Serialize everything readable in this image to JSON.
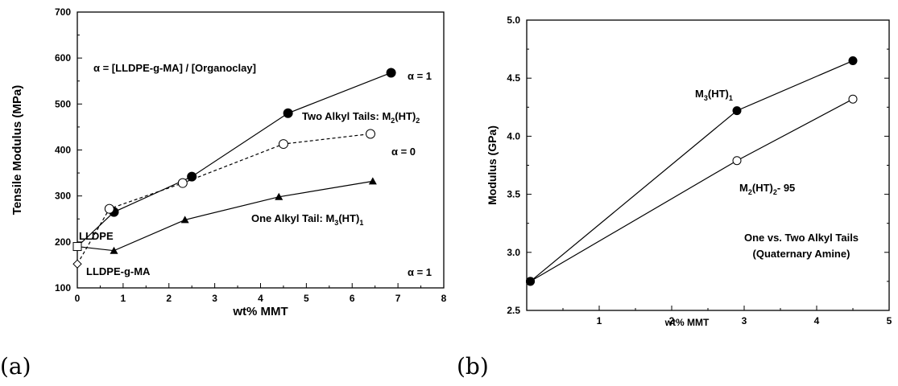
{
  "chart_data": [
    {
      "type": "line",
      "panel_label": "(a)",
      "xlabel": "wt% MMT",
      "ylabel": "Tensile Modulus (MPa)",
      "xlim": [
        0,
        8
      ],
      "ylim": [
        100,
        700
      ],
      "xticks": [
        0,
        1,
        2,
        3,
        4,
        5,
        6,
        7,
        8
      ],
      "yticks": [
        100,
        200,
        300,
        400,
        500,
        600,
        700
      ],
      "series": [
        {
          "name": "Two Alkyl Tails: M2(HT)2, α = 1",
          "marker": "filled-circle",
          "line": "solid",
          "x": [
            0,
            0.8,
            2.5,
            4.6,
            6.85
          ],
          "y": [
            190,
            265,
            342,
            480,
            568
          ]
        },
        {
          "name": "Two Alkyl Tails: M2(HT)2, α = 0",
          "marker": "open-circle",
          "line": "dashed",
          "x": [
            0,
            0.7,
            2.3,
            4.5,
            6.4
          ],
          "y": [
            152,
            272,
            328,
            413,
            435
          ]
        },
        {
          "name": "One Alkyl Tail: M3(HT)1, α = 1",
          "marker": "filled-triangle",
          "line": "solid",
          "x": [
            0,
            0.8,
            2.35,
            4.4,
            6.45
          ],
          "y": [
            190,
            181,
            248,
            298,
            332
          ]
        }
      ],
      "special_points": [
        {
          "label": "LLDPE",
          "marker": "open-square",
          "x": 0,
          "y": 190
        },
        {
          "label": "LLDPE-g-MA",
          "marker": "open-diamond",
          "x": 0,
          "y": 152
        }
      ],
      "annotations": [
        {
          "id": "formula",
          "text": "α = [LLDPE-g-MA] / [Organoclay]"
        },
        {
          "id": "two_tails",
          "text": "Two Alkyl Tails: M",
          "sub1": "2",
          "mid": "(HT)",
          "sub2": "2"
        },
        {
          "id": "one_tail",
          "text": "One Alkyl Tail: M",
          "sub1": "3",
          "mid": "(HT)",
          "sub2": "1"
        },
        {
          "id": "alpha_top",
          "text": "α = 1"
        },
        {
          "id": "alpha_mid",
          "text": "α = 0"
        },
        {
          "id": "alpha_bot",
          "text": "α = 1"
        },
        {
          "id": "lldpe",
          "text": "LLDPE"
        },
        {
          "id": "lldpe_gma",
          "text": "LLDPE-g-MA"
        }
      ]
    },
    {
      "type": "line",
      "panel_label": "(b)",
      "xlabel": "wt% MMT",
      "ylabel": "Modulus (GPa)",
      "xlim": [
        0,
        5
      ],
      "ylim": [
        2.5,
        5.0
      ],
      "xticks": [
        1,
        2,
        3,
        4,
        5
      ],
      "yticks": [
        2.5,
        3.0,
        3.5,
        4.0,
        4.5,
        5.0
      ],
      "series": [
        {
          "name": "M3(HT)1",
          "marker": "filled-circle",
          "line": "solid",
          "x": [
            0.05,
            2.9,
            4.5
          ],
          "y": [
            2.75,
            4.22,
            4.65
          ]
        },
        {
          "name": "M2(HT)2- 95",
          "marker": "open-circle",
          "line": "solid",
          "x": [
            0.05,
            2.9,
            4.5
          ],
          "y": [
            2.75,
            3.79,
            4.32
          ]
        }
      ],
      "annotations": [
        {
          "id": "m3",
          "text": "M",
          "sub1": "3",
          "mid": "(HT)",
          "sub2": "1"
        },
        {
          "id": "m2",
          "text": "M",
          "sub1": "2",
          "mid": "(HT)",
          "sub2": "2",
          "tail": "- 95"
        },
        {
          "id": "box1",
          "text": "One vs. Two Alkyl Tails"
        },
        {
          "id": "box2",
          "text": "(Quaternary Amine)"
        }
      ]
    }
  ]
}
